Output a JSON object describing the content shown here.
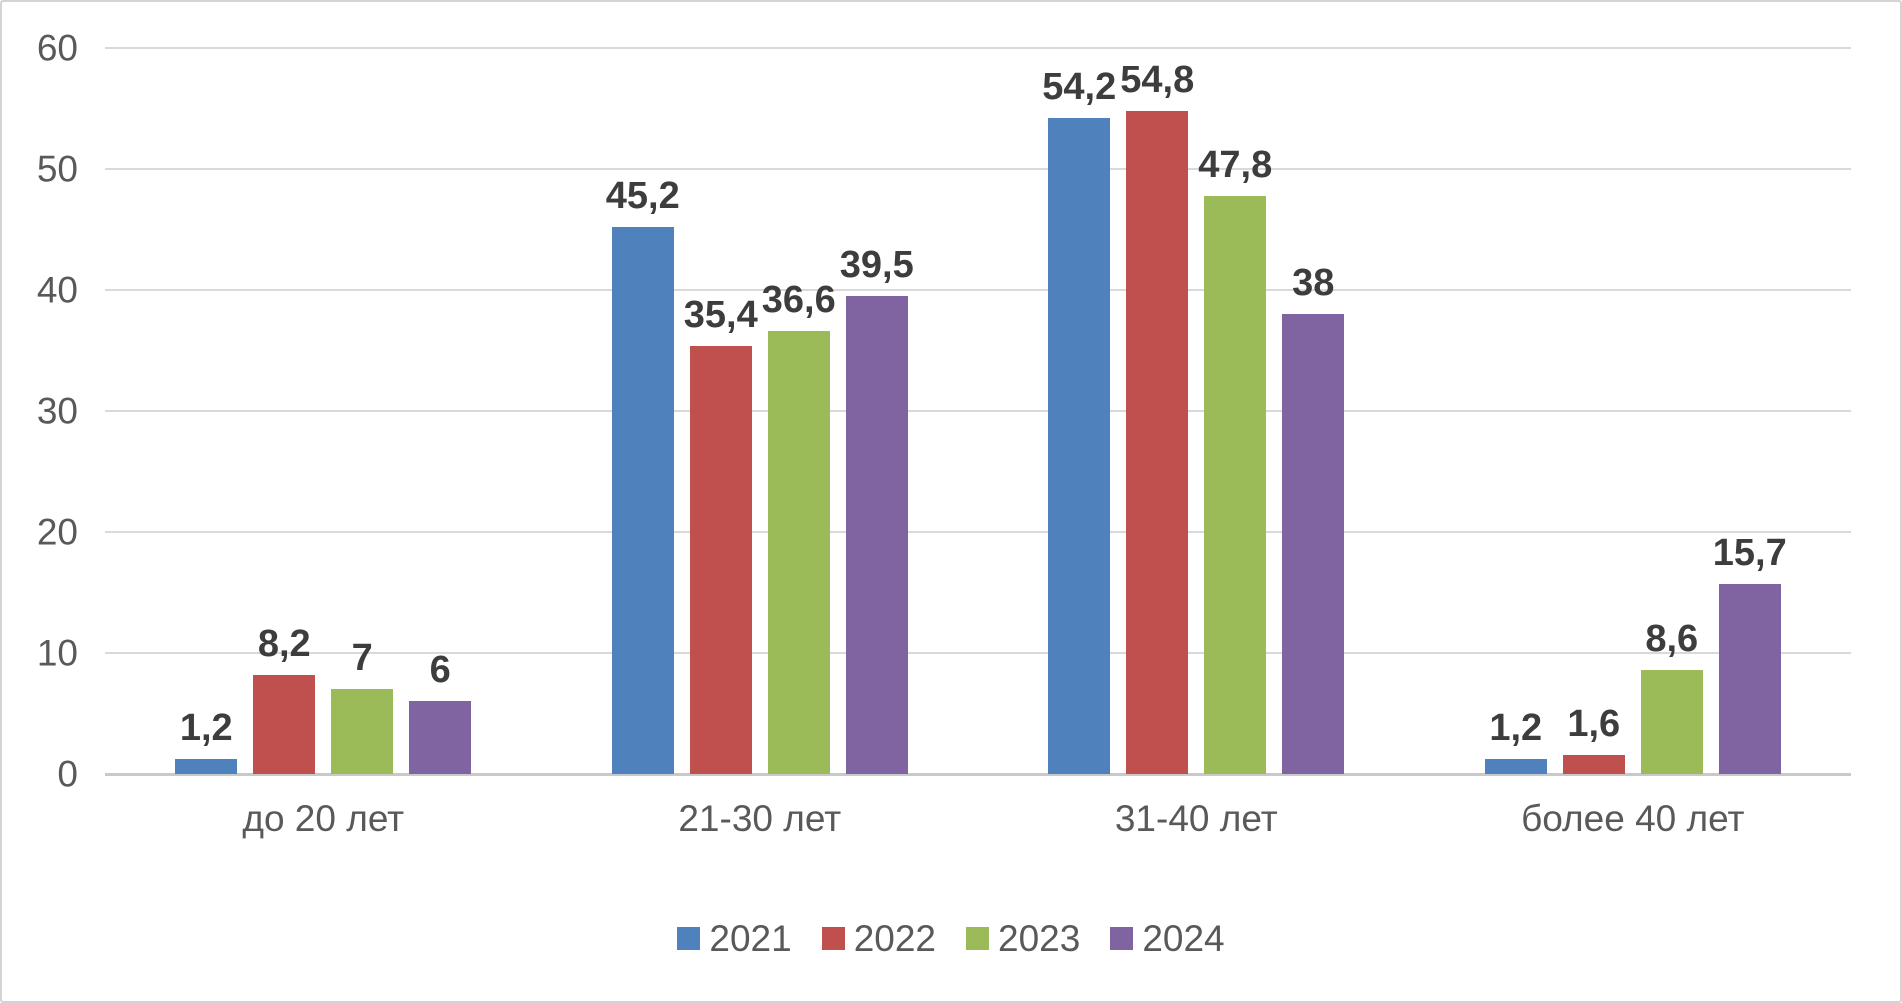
{
  "chart_data": {
    "type": "bar",
    "title": "",
    "xlabel": "",
    "ylabel": "",
    "categories": [
      "до 20 лет",
      "21-30 лет",
      "31-40 лет",
      "более 40 лет"
    ],
    "series": [
      {
        "name": "2021",
        "color": "#4F81BD",
        "values": [
          1.2,
          45.2,
          54.2,
          1.2
        ],
        "labels": [
          "1,2",
          "45,2",
          "54,2",
          "1,2"
        ]
      },
      {
        "name": "2022",
        "color": "#C0504D",
        "values": [
          8.2,
          35.4,
          54.8,
          1.6
        ],
        "labels": [
          "8,2",
          "35,4",
          "54,8",
          "1,6"
        ]
      },
      {
        "name": "2023",
        "color": "#9BBB59",
        "values": [
          7,
          36.6,
          47.8,
          8.6
        ],
        "labels": [
          "7",
          "36,6",
          "47,8",
          "8,6"
        ]
      },
      {
        "name": "2024",
        "color": "#8064A2",
        "values": [
          6,
          39.5,
          38,
          15.7
        ],
        "labels": [
          "6",
          "39,5",
          "38",
          "15,7"
        ]
      }
    ],
    "y_axis": {
      "min": 0,
      "max": 60,
      "step": 10,
      "tick_labels": [
        "0",
        "10",
        "20",
        "30",
        "40",
        "50",
        "60"
      ]
    },
    "ylim": [
      0,
      60
    ],
    "grid": true,
    "legend_position": "bottom",
    "legend": [
      "2021",
      "2022",
      "2023",
      "2024"
    ],
    "colors": {
      "gridline": "#d9d9d9",
      "axis_line": "#c9c9c9",
      "tick_label": "#595959",
      "category_label": "#595959",
      "data_label": "#3d3d3d",
      "frame_border": "#d5d3d3",
      "background": "#ffffff"
    }
  }
}
